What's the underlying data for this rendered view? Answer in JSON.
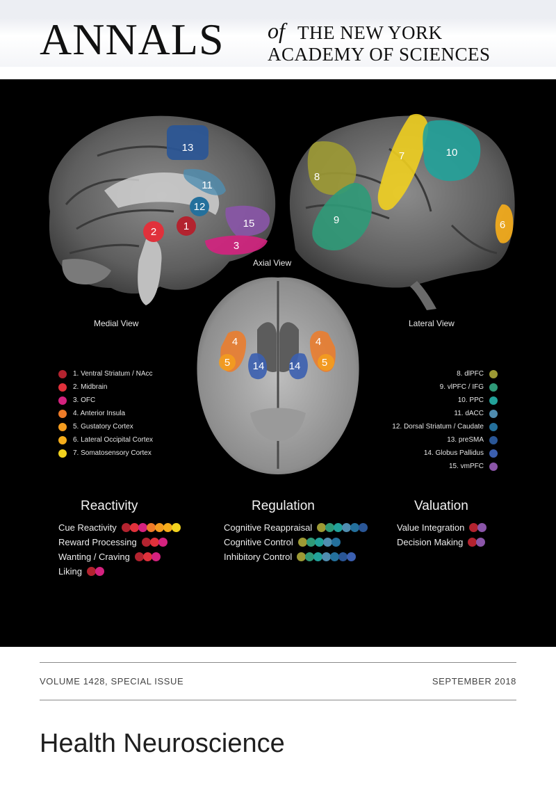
{
  "masthead": {
    "annals": "ANNALS",
    "of": "of",
    "line1": "THE NEW YORK",
    "line2": "ACADEMY OF SCIENCES"
  },
  "views": {
    "medial": "Medial View",
    "axial": "Axial View",
    "lateral": "Lateral View"
  },
  "regions": [
    {
      "n": "1",
      "label": "1. Ventral Striatum / NAcc",
      "color": "#b3232f"
    },
    {
      "n": "2",
      "label": "2. Midbrain",
      "color": "#e0313b"
    },
    {
      "n": "3",
      "label": "3. OFC",
      "color": "#d4227f"
    },
    {
      "n": "4",
      "label": "4. Anterior Insula",
      "color": "#ee7b28"
    },
    {
      "n": "5",
      "label": "5. Gustatory Cortex",
      "color": "#f39c1f"
    },
    {
      "n": "6",
      "label": "6. Lateral Occipital Cortex",
      "color": "#f5ad1b"
    },
    {
      "n": "7",
      "label": "7. Somatosensory Cortex",
      "color": "#f2d21e"
    },
    {
      "n": "8",
      "label": "8. dlPFC",
      "color": "#9d9a34"
    },
    {
      "n": "9",
      "label": "9. vlPFC / IFG",
      "color": "#2f9a78"
    },
    {
      "n": "10",
      "label": "10. PPC",
      "color": "#22a29a"
    },
    {
      "n": "11",
      "label": "11. dACC",
      "color": "#4f8db0"
    },
    {
      "n": "12",
      "label": "12. Dorsal Striatum / Caudate",
      "color": "#24709c"
    },
    {
      "n": "13",
      "label": "13. preSMA",
      "color": "#2a5696"
    },
    {
      "n": "14",
      "label": "14. Globus Pallidus",
      "color": "#3b5fb0"
    },
    {
      "n": "15",
      "label": "15. vmPFC",
      "color": "#8a55a8"
    }
  ],
  "categories": [
    {
      "title": "Reactivity",
      "functions": [
        {
          "label": "Cue Reactivity",
          "dots": [
            "#b3232f",
            "#e0313b",
            "#d4227f",
            "#ee7b28",
            "#f39c1f",
            "#f5ad1b",
            "#f2d21e"
          ]
        },
        {
          "label": "Reward Processing",
          "dots": [
            "#b3232f",
            "#e0313b",
            "#d4227f"
          ]
        },
        {
          "label": "Wanting / Craving",
          "dots": [
            "#b3232f",
            "#e0313b",
            "#d4227f"
          ]
        },
        {
          "label": "Liking",
          "dots": [
            "#b3232f",
            "#d4227f"
          ]
        }
      ]
    },
    {
      "title": "Regulation",
      "functions": [
        {
          "label": "Cognitive Reappraisal",
          "dots": [
            "#9d9a34",
            "#2f9a78",
            "#22a29a",
            "#4f8db0",
            "#24709c",
            "#2a5696"
          ]
        },
        {
          "label": "Cognitive Control",
          "dots": [
            "#9d9a34",
            "#2f9a78",
            "#22a29a",
            "#4f8db0",
            "#24709c"
          ]
        },
        {
          "label": "Inhibitory Control",
          "dots": [
            "#9d9a34",
            "#2f9a78",
            "#22a29a",
            "#4f8db0",
            "#24709c",
            "#2a5696",
            "#3b5fb0"
          ]
        }
      ]
    },
    {
      "title": "Valuation",
      "functions": [
        {
          "label": "Value Integration",
          "dots": [
            "#b3232f",
            "#8a55a8"
          ]
        },
        {
          "label": "Decision Making",
          "dots": [
            "#b3232f",
            "#8a55a8"
          ]
        }
      ]
    }
  ],
  "footer": {
    "volume": "VOLUME 1428, SPECIAL ISSUE",
    "date": "SEPTEMBER 2018",
    "issue_title": "Health Neuroscience"
  }
}
